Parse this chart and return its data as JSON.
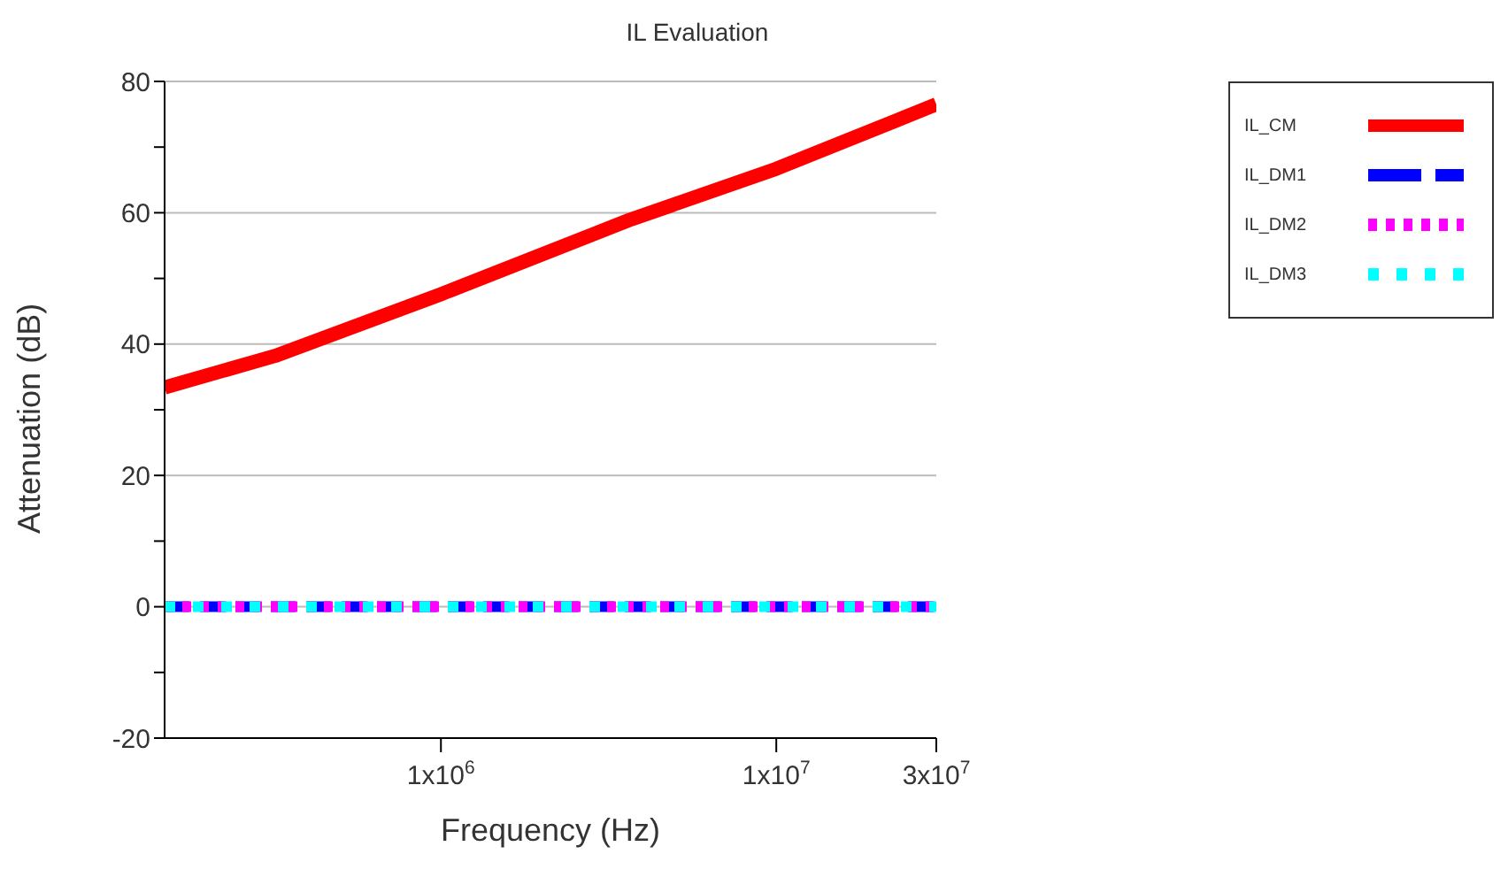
{
  "chart_data": {
    "type": "line",
    "title": "IL Evaluation",
    "xlabel": "Frequency (Hz)",
    "ylabel": "Attenuation (dB)",
    "log": "x",
    "xlim": [
      150000,
      30000000
    ],
    "xticks": [
      {
        "value": 1000000,
        "label": "1x10$^{6}$"
      },
      {
        "value": 10000000,
        "label": "1x10$^{7}$"
      },
      {
        "value": 30000000,
        "label": "3x10$^{7}$"
      }
    ],
    "ylim": [
      -20,
      80
    ],
    "yticks": [
      -20,
      {
        "value": -10,
        "label": null
      },
      0,
      {
        "value": 10,
        "label": null
      },
      20,
      {
        "value": 30,
        "label": null
      },
      40,
      {
        "value": 50,
        "label": null
      },
      60,
      {
        "value": 70,
        "label": null
      },
      80
    ],
    "grid": "y",
    "legend": "top right",
    "marker": "none",
    "series": [
      {
        "name": "IL_CM",
        "color": "#ff0000",
        "line_style": "solid",
        "x": [
          150000,
          320000,
          1000000,
          3650000,
          10000000,
          30000000
        ],
        "values": [
          33.4,
          38.2,
          47.6,
          58.9,
          66.7,
          76.5
        ]
      },
      {
        "name": "IL_DM1",
        "color": "#0000ff",
        "line_style": "dashed",
        "x": [
          150000,
          30000000
        ],
        "values": [
          0,
          0
        ]
      },
      {
        "name": "IL_DM2",
        "color": "#ff00ff",
        "line_style": "dotted",
        "x": [
          150000,
          30000000
        ],
        "values": [
          0,
          0
        ]
      },
      {
        "name": "IL_DM3",
        "color": "#00ffff",
        "line_style": "dashed",
        "x": [
          150000,
          30000000
        ],
        "values": [
          0,
          0
        ]
      }
    ]
  }
}
